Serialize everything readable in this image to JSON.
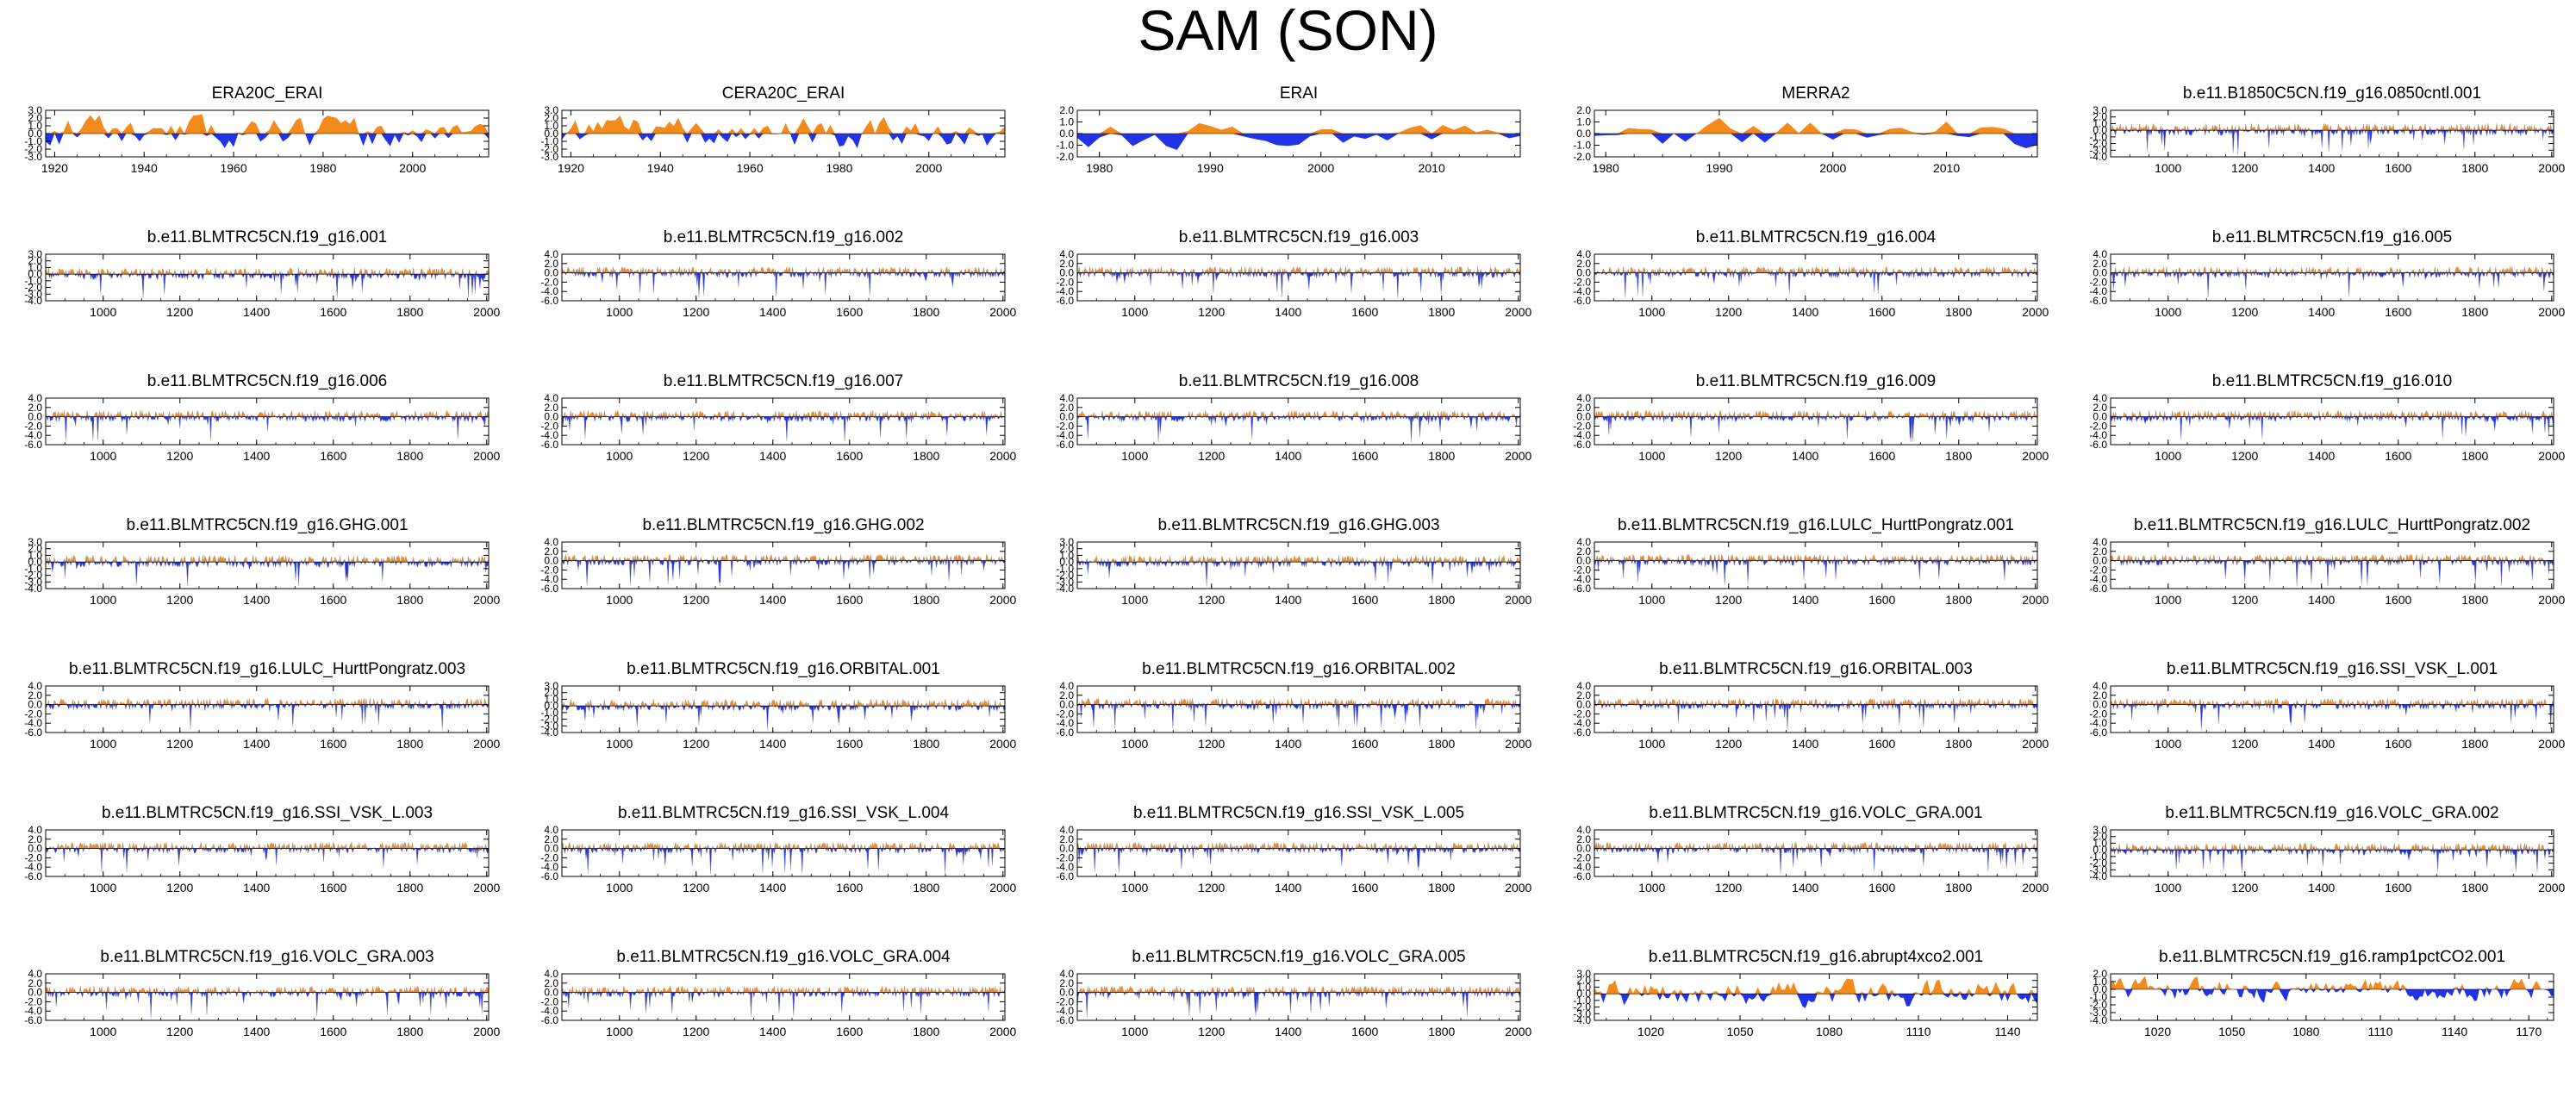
{
  "figure": {
    "title": "SAM (SON)"
  },
  "colors": {
    "positive": "#f28a1c",
    "negative": "#2233e6",
    "zero_line": "#000000"
  },
  "chart_data": [
    {
      "type": "area",
      "title": "ERA20C_ERAI",
      "xlim": [
        1918,
        2017
      ],
      "ylim": [
        -3,
        3
      ],
      "xticks": [
        1920,
        1940,
        1960,
        1980,
        2000
      ],
      "yticks": [
        -3,
        -2,
        -1,
        0,
        1,
        2,
        3
      ],
      "style": "smooth",
      "seed": 11
    },
    {
      "type": "area",
      "title": "CERA20C_ERAI",
      "xlim": [
        1918,
        2017
      ],
      "ylim": [
        -3,
        3
      ],
      "xticks": [
        1920,
        1940,
        1960,
        1980,
        2000
      ],
      "yticks": [
        -3,
        -2,
        -1,
        0,
        1,
        2,
        3
      ],
      "style": "smooth",
      "seed": 12
    },
    {
      "type": "area",
      "title": "ERAI",
      "xlim": [
        1978,
        2018
      ],
      "ylim": [
        -2,
        2
      ],
      "xticks": [
        1980,
        1990,
        2000,
        2010
      ],
      "yticks": [
        -2,
        -1,
        0,
        1,
        2
      ],
      "style": "smooth",
      "seed": 13
    },
    {
      "type": "area",
      "title": "MERRA2",
      "xlim": [
        1979,
        2018
      ],
      "ylim": [
        -2,
        2
      ],
      "xticks": [
        1980,
        1990,
        2000,
        2010
      ],
      "yticks": [
        -2,
        -1,
        0,
        1,
        2
      ],
      "style": "smooth",
      "seed": 14
    },
    {
      "type": "area",
      "title": "b.e11.B1850C5CN.f19_g16.0850cntl.001",
      "xlim": [
        850,
        2005
      ],
      "ylim": [
        -4,
        3
      ],
      "xticks": [
        1000,
        1200,
        1400,
        1600,
        1800,
        2000
      ],
      "yticks": [
        -4,
        -3,
        -2,
        -1,
        0,
        1,
        2,
        3
      ],
      "style": "dense",
      "seed": 15
    },
    {
      "type": "area",
      "title": "b.e11.BLMTRC5CN.f19_g16.001",
      "xlim": [
        850,
        2005
      ],
      "ylim": [
        -4,
        3
      ],
      "xticks": [
        1000,
        1200,
        1400,
        1600,
        1800,
        2000
      ],
      "yticks": [
        -4,
        -3,
        -2,
        -1,
        0,
        1,
        2,
        3
      ],
      "style": "dense",
      "seed": 21
    },
    {
      "type": "area",
      "title": "b.e11.BLMTRC5CN.f19_g16.002",
      "xlim": [
        850,
        2005
      ],
      "ylim": [
        -6,
        4
      ],
      "xticks": [
        1000,
        1200,
        1400,
        1600,
        1800,
        2000
      ],
      "yticks": [
        -6,
        -4,
        -2,
        0,
        2,
        4
      ],
      "style": "dense",
      "seed": 22
    },
    {
      "type": "area",
      "title": "b.e11.BLMTRC5CN.f19_g16.003",
      "xlim": [
        850,
        2005
      ],
      "ylim": [
        -6,
        4
      ],
      "xticks": [
        1000,
        1200,
        1400,
        1600,
        1800,
        2000
      ],
      "yticks": [
        -6,
        -4,
        -2,
        0,
        2,
        4
      ],
      "style": "dense",
      "seed": 23
    },
    {
      "type": "area",
      "title": "b.e11.BLMTRC5CN.f19_g16.004",
      "xlim": [
        850,
        2005
      ],
      "ylim": [
        -6,
        4
      ],
      "xticks": [
        1000,
        1200,
        1400,
        1600,
        1800,
        2000
      ],
      "yticks": [
        -6,
        -4,
        -2,
        0,
        2,
        4
      ],
      "style": "dense",
      "seed": 24
    },
    {
      "type": "area",
      "title": "b.e11.BLMTRC5CN.f19_g16.005",
      "xlim": [
        850,
        2005
      ],
      "ylim": [
        -6,
        4
      ],
      "xticks": [
        1000,
        1200,
        1400,
        1600,
        1800,
        2000
      ],
      "yticks": [
        -6,
        -4,
        -2,
        0,
        2,
        4
      ],
      "style": "dense",
      "seed": 25
    },
    {
      "type": "area",
      "title": "b.e11.BLMTRC5CN.f19_g16.006",
      "xlim": [
        850,
        2005
      ],
      "ylim": [
        -6,
        4
      ],
      "xticks": [
        1000,
        1200,
        1400,
        1600,
        1800,
        2000
      ],
      "yticks": [
        -6,
        -4,
        -2,
        0,
        2,
        4
      ],
      "style": "dense",
      "seed": 31
    },
    {
      "type": "area",
      "title": "b.e11.BLMTRC5CN.f19_g16.007",
      "xlim": [
        850,
        2005
      ],
      "ylim": [
        -6,
        4
      ],
      "xticks": [
        1000,
        1200,
        1400,
        1600,
        1800,
        2000
      ],
      "yticks": [
        -6,
        -4,
        -2,
        0,
        2,
        4
      ],
      "style": "dense",
      "seed": 32
    },
    {
      "type": "area",
      "title": "b.e11.BLMTRC5CN.f19_g16.008",
      "xlim": [
        850,
        2005
      ],
      "ylim": [
        -6,
        4
      ],
      "xticks": [
        1000,
        1200,
        1400,
        1600,
        1800,
        2000
      ],
      "yticks": [
        -6,
        -4,
        -2,
        0,
        2,
        4
      ],
      "style": "dense",
      "seed": 33
    },
    {
      "type": "area",
      "title": "b.e11.BLMTRC5CN.f19_g16.009",
      "xlim": [
        850,
        2005
      ],
      "ylim": [
        -6,
        4
      ],
      "xticks": [
        1000,
        1200,
        1400,
        1600,
        1800,
        2000
      ],
      "yticks": [
        -6,
        -4,
        -2,
        0,
        2,
        4
      ],
      "style": "dense",
      "seed": 34
    },
    {
      "type": "area",
      "title": "b.e11.BLMTRC5CN.f19_g16.010",
      "xlim": [
        850,
        2005
      ],
      "ylim": [
        -6,
        4
      ],
      "xticks": [
        1000,
        1200,
        1400,
        1600,
        1800,
        2000
      ],
      "yticks": [
        -6,
        -4,
        -2,
        0,
        2,
        4
      ],
      "style": "dense",
      "seed": 35
    },
    {
      "type": "area",
      "title": "b.e11.BLMTRC5CN.f19_g16.GHG.001",
      "xlim": [
        850,
        2005
      ],
      "ylim": [
        -4,
        3
      ],
      "xticks": [
        1000,
        1200,
        1400,
        1600,
        1800,
        2000
      ],
      "yticks": [
        -4,
        -3,
        -2,
        -1,
        0,
        1,
        2,
        3
      ],
      "style": "dense",
      "seed": 41
    },
    {
      "type": "area",
      "title": "b.e11.BLMTRC5CN.f19_g16.GHG.002",
      "xlim": [
        850,
        2005
      ],
      "ylim": [
        -6,
        4
      ],
      "xticks": [
        1000,
        1200,
        1400,
        1600,
        1800,
        2000
      ],
      "yticks": [
        -6,
        -4,
        -2,
        0,
        2,
        4
      ],
      "style": "dense",
      "seed": 42
    },
    {
      "type": "area",
      "title": "b.e11.BLMTRC5CN.f19_g16.GHG.003",
      "xlim": [
        850,
        2005
      ],
      "ylim": [
        -4,
        3
      ],
      "xticks": [
        1000,
        1200,
        1400,
        1600,
        1800,
        2000
      ],
      "yticks": [
        -4,
        -3,
        -2,
        -1,
        0,
        1,
        2,
        3
      ],
      "style": "dense",
      "seed": 43
    },
    {
      "type": "area",
      "title": "b.e11.BLMTRC5CN.f19_g16.LULC_HurttPongratz.001",
      "xlim": [
        850,
        2005
      ],
      "ylim": [
        -6,
        4
      ],
      "xticks": [
        1000,
        1200,
        1400,
        1600,
        1800,
        2000
      ],
      "yticks": [
        -6,
        -4,
        -2,
        0,
        2,
        4
      ],
      "style": "dense",
      "seed": 44
    },
    {
      "type": "area",
      "title": "b.e11.BLMTRC5CN.f19_g16.LULC_HurttPongratz.002",
      "xlim": [
        850,
        2005
      ],
      "ylim": [
        -6,
        4
      ],
      "xticks": [
        1000,
        1200,
        1400,
        1600,
        1800,
        2000
      ],
      "yticks": [
        -6,
        -4,
        -2,
        0,
        2,
        4
      ],
      "style": "dense",
      "seed": 45
    },
    {
      "type": "area",
      "title": "b.e11.BLMTRC5CN.f19_g16.LULC_HurttPongratz.003",
      "xlim": [
        850,
        2005
      ],
      "ylim": [
        -6,
        4
      ],
      "xticks": [
        1000,
        1200,
        1400,
        1600,
        1800,
        2000
      ],
      "yticks": [
        -6,
        -4,
        -2,
        0,
        2,
        4
      ],
      "style": "dense",
      "seed": 51
    },
    {
      "type": "area",
      "title": "b.e11.BLMTRC5CN.f19_g16.ORBITAL.001",
      "xlim": [
        850,
        2005
      ],
      "ylim": [
        -4,
        3
      ],
      "xticks": [
        1000,
        1200,
        1400,
        1600,
        1800,
        2000
      ],
      "yticks": [
        -4,
        -3,
        -2,
        -1,
        0,
        1,
        2,
        3
      ],
      "style": "dense",
      "seed": 52
    },
    {
      "type": "area",
      "title": "b.e11.BLMTRC5CN.f19_g16.ORBITAL.002",
      "xlim": [
        850,
        2005
      ],
      "ylim": [
        -6,
        4
      ],
      "xticks": [
        1000,
        1200,
        1400,
        1600,
        1800,
        2000
      ],
      "yticks": [
        -6,
        -4,
        -2,
        0,
        2,
        4
      ],
      "style": "dense",
      "seed": 53
    },
    {
      "type": "area",
      "title": "b.e11.BLMTRC5CN.f19_g16.ORBITAL.003",
      "xlim": [
        850,
        2005
      ],
      "ylim": [
        -6,
        4
      ],
      "xticks": [
        1000,
        1200,
        1400,
        1600,
        1800,
        2000
      ],
      "yticks": [
        -6,
        -4,
        -2,
        0,
        2,
        4
      ],
      "style": "dense",
      "seed": 54
    },
    {
      "type": "area",
      "title": "b.e11.BLMTRC5CN.f19_g16.SSI_VSK_L.001",
      "xlim": [
        850,
        2005
      ],
      "ylim": [
        -6,
        4
      ],
      "xticks": [
        1000,
        1200,
        1400,
        1600,
        1800,
        2000
      ],
      "yticks": [
        -6,
        -4,
        -2,
        0,
        2,
        4
      ],
      "style": "dense",
      "seed": 55
    },
    {
      "type": "area",
      "title": "b.e11.BLMTRC5CN.f19_g16.SSI_VSK_L.003",
      "xlim": [
        850,
        2005
      ],
      "ylim": [
        -6,
        4
      ],
      "xticks": [
        1000,
        1200,
        1400,
        1600,
        1800,
        2000
      ],
      "yticks": [
        -6,
        -4,
        -2,
        0,
        2,
        4
      ],
      "style": "dense",
      "seed": 61
    },
    {
      "type": "area",
      "title": "b.e11.BLMTRC5CN.f19_g16.SSI_VSK_L.004",
      "xlim": [
        850,
        2005
      ],
      "ylim": [
        -6,
        4
      ],
      "xticks": [
        1000,
        1200,
        1400,
        1600,
        1800,
        2000
      ],
      "yticks": [
        -6,
        -4,
        -2,
        0,
        2,
        4
      ],
      "style": "dense",
      "seed": 62
    },
    {
      "type": "area",
      "title": "b.e11.BLMTRC5CN.f19_g16.SSI_VSK_L.005",
      "xlim": [
        850,
        2005
      ],
      "ylim": [
        -6,
        4
      ],
      "xticks": [
        1000,
        1200,
        1400,
        1600,
        1800,
        2000
      ],
      "yticks": [
        -6,
        -4,
        -2,
        0,
        2,
        4
      ],
      "style": "dense",
      "seed": 63
    },
    {
      "type": "area",
      "title": "b.e11.BLMTRC5CN.f19_g16.VOLC_GRA.001",
      "xlim": [
        850,
        2005
      ],
      "ylim": [
        -6,
        4
      ],
      "xticks": [
        1000,
        1200,
        1400,
        1600,
        1800,
        2000
      ],
      "yticks": [
        -6,
        -4,
        -2,
        0,
        2,
        4
      ],
      "style": "dense",
      "seed": 64
    },
    {
      "type": "area",
      "title": "b.e11.BLMTRC5CN.f19_g16.VOLC_GRA.002",
      "xlim": [
        850,
        2005
      ],
      "ylim": [
        -4,
        3
      ],
      "xticks": [
        1000,
        1200,
        1400,
        1600,
        1800,
        2000
      ],
      "yticks": [
        -4,
        -3,
        -2,
        -1,
        0,
        1,
        2,
        3
      ],
      "style": "dense",
      "seed": 65
    },
    {
      "type": "area",
      "title": "b.e11.BLMTRC5CN.f19_g16.VOLC_GRA.003",
      "xlim": [
        850,
        2005
      ],
      "ylim": [
        -6,
        4
      ],
      "xticks": [
        1000,
        1200,
        1400,
        1600,
        1800,
        2000
      ],
      "yticks": [
        -6,
        -4,
        -2,
        0,
        2,
        4
      ],
      "style": "dense",
      "seed": 71
    },
    {
      "type": "area",
      "title": "b.e11.BLMTRC5CN.f19_g16.VOLC_GRA.004",
      "xlim": [
        850,
        2005
      ],
      "ylim": [
        -6,
        4
      ],
      "xticks": [
        1000,
        1200,
        1400,
        1600,
        1800,
        2000
      ],
      "yticks": [
        -6,
        -4,
        -2,
        0,
        2,
        4
      ],
      "style": "dense",
      "seed": 72
    },
    {
      "type": "area",
      "title": "b.e11.BLMTRC5CN.f19_g16.VOLC_GRA.005",
      "xlim": [
        850,
        2005
      ],
      "ylim": [
        -6,
        4
      ],
      "xticks": [
        1000,
        1200,
        1400,
        1600,
        1800,
        2000
      ],
      "yticks": [
        -6,
        -4,
        -2,
        0,
        2,
        4
      ],
      "style": "dense",
      "seed": 73
    },
    {
      "type": "area",
      "title": "b.e11.BLMTRC5CN.f19_g16.abrupt4xco2.001",
      "xlim": [
        1001,
        1150
      ],
      "ylim": [
        -4,
        3
      ],
      "xticks": [
        1020,
        1050,
        1080,
        1110,
        1140
      ],
      "yticks": [
        -4,
        -3,
        -2,
        -1,
        0,
        1,
        2,
        3
      ],
      "style": "smooth",
      "seed": 74
    },
    {
      "type": "area",
      "title": "b.e11.BLMTRC5CN.f19_g16.ramp1pctCO2.001",
      "xlim": [
        1001,
        1180
      ],
      "ylim": [
        -4,
        2
      ],
      "xticks": [
        1020,
        1050,
        1080,
        1110,
        1140,
        1170
      ],
      "yticks": [
        -4,
        -3,
        -2,
        -1,
        0,
        1,
        2
      ],
      "style": "smooth",
      "seed": 75
    }
  ]
}
